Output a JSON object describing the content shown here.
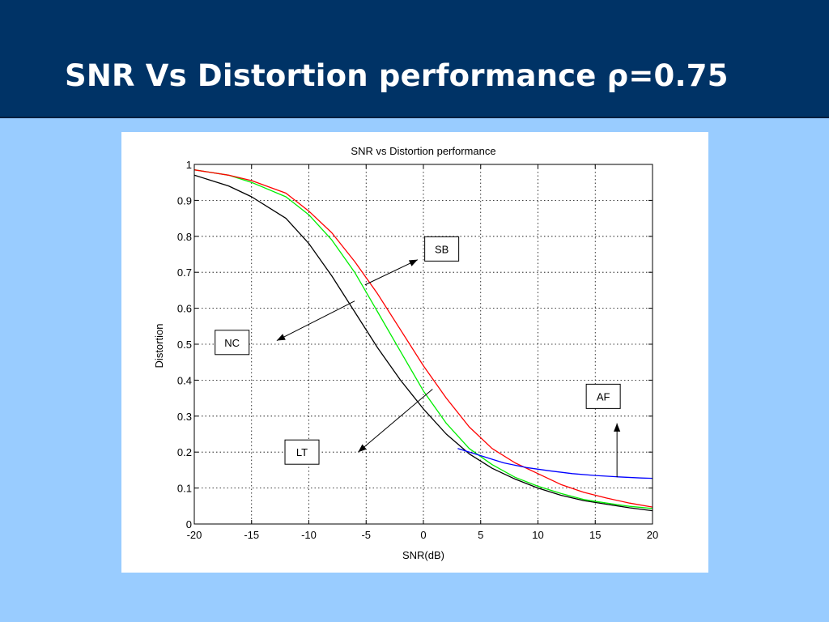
{
  "slide": {
    "title": "SNR Vs Distortion performance ρ=0.75",
    "header_color": "#003366",
    "background_color": "#99ccff"
  },
  "chart_data": {
    "type": "line",
    "title": "SNR vs Distortion performance",
    "xlabel": "SNR(dB)",
    "ylabel": "Distortion",
    "xlim": [
      -20,
      20
    ],
    "ylim": [
      0,
      1
    ],
    "xticks": [
      "-20",
      "-15",
      "-10",
      "-5",
      "0",
      "5",
      "10",
      "15",
      "20"
    ],
    "yticks": [
      "0",
      "0.1",
      "0.2",
      "0.3",
      "0.4",
      "0.5",
      "0.6",
      "0.7",
      "0.8",
      "0.9",
      "1"
    ],
    "grid": true,
    "series": [
      {
        "color": "#000000",
        "x": [
          -20,
          -17,
          -15,
          -12,
          -10,
          -8,
          -6,
          -4,
          -2,
          0,
          2,
          4,
          6,
          8,
          10,
          12,
          14,
          16,
          18,
          20
        ],
        "y": [
          0.97,
          0.94,
          0.91,
          0.85,
          0.78,
          0.69,
          0.59,
          0.49,
          0.4,
          0.32,
          0.25,
          0.195,
          0.155,
          0.125,
          0.1,
          0.08,
          0.065,
          0.055,
          0.045,
          0.037
        ]
      },
      {
        "color": "#00ee00",
        "x": [
          -20,
          -17,
          -15,
          -12,
          -10,
          -8,
          -6,
          -4,
          -2,
          0,
          2,
          4,
          6,
          8,
          10,
          12,
          14,
          16,
          18,
          20
        ],
        "y": [
          0.985,
          0.97,
          0.95,
          0.91,
          0.86,
          0.79,
          0.7,
          0.59,
          0.48,
          0.37,
          0.28,
          0.21,
          0.165,
          0.13,
          0.105,
          0.085,
          0.068,
          0.058,
          0.049,
          0.043
        ]
      },
      {
        "color": "#ff0000",
        "x": [
          -20,
          -17,
          -15,
          -12,
          -10,
          -8,
          -6,
          -4,
          -2,
          0,
          2,
          4,
          6,
          8,
          10,
          12,
          14,
          16,
          18,
          20
        ],
        "y": [
          0.985,
          0.97,
          0.955,
          0.92,
          0.87,
          0.81,
          0.73,
          0.64,
          0.54,
          0.44,
          0.35,
          0.27,
          0.21,
          0.17,
          0.14,
          0.11,
          0.088,
          0.072,
          0.058,
          0.047
        ]
      },
      {
        "color": "#0000ff",
        "x": [
          3,
          5,
          7,
          9,
          11,
          13,
          15,
          17,
          19,
          20
        ],
        "y": [
          0.21,
          0.19,
          0.17,
          0.157,
          0.148,
          0.14,
          0.135,
          0.131,
          0.128,
          0.127
        ]
      }
    ],
    "annotations": [
      {
        "label": "SB",
        "box_x": 1.6,
        "box_y": 0.765,
        "tip_x": -0.5,
        "tip_y": 0.735,
        "from_x": -5.1,
        "from_y": 0.665
      },
      {
        "label": "NC",
        "box_x": -16.7,
        "box_y": 0.505,
        "tip_x": -12.8,
        "tip_y": 0.51,
        "from_x": -6.0,
        "from_y": 0.62
      },
      {
        "label": "LT",
        "box_x": -10.6,
        "box_y": 0.2,
        "tip_x": -5.7,
        "tip_y": 0.2,
        "from_x": 0.8,
        "from_y": 0.375
      },
      {
        "label": "AF",
        "box_x": 15.7,
        "box_y": 0.355,
        "tip_x": 16.9,
        "tip_y": 0.28,
        "from_x": 16.9,
        "from_y": 0.13
      }
    ]
  }
}
